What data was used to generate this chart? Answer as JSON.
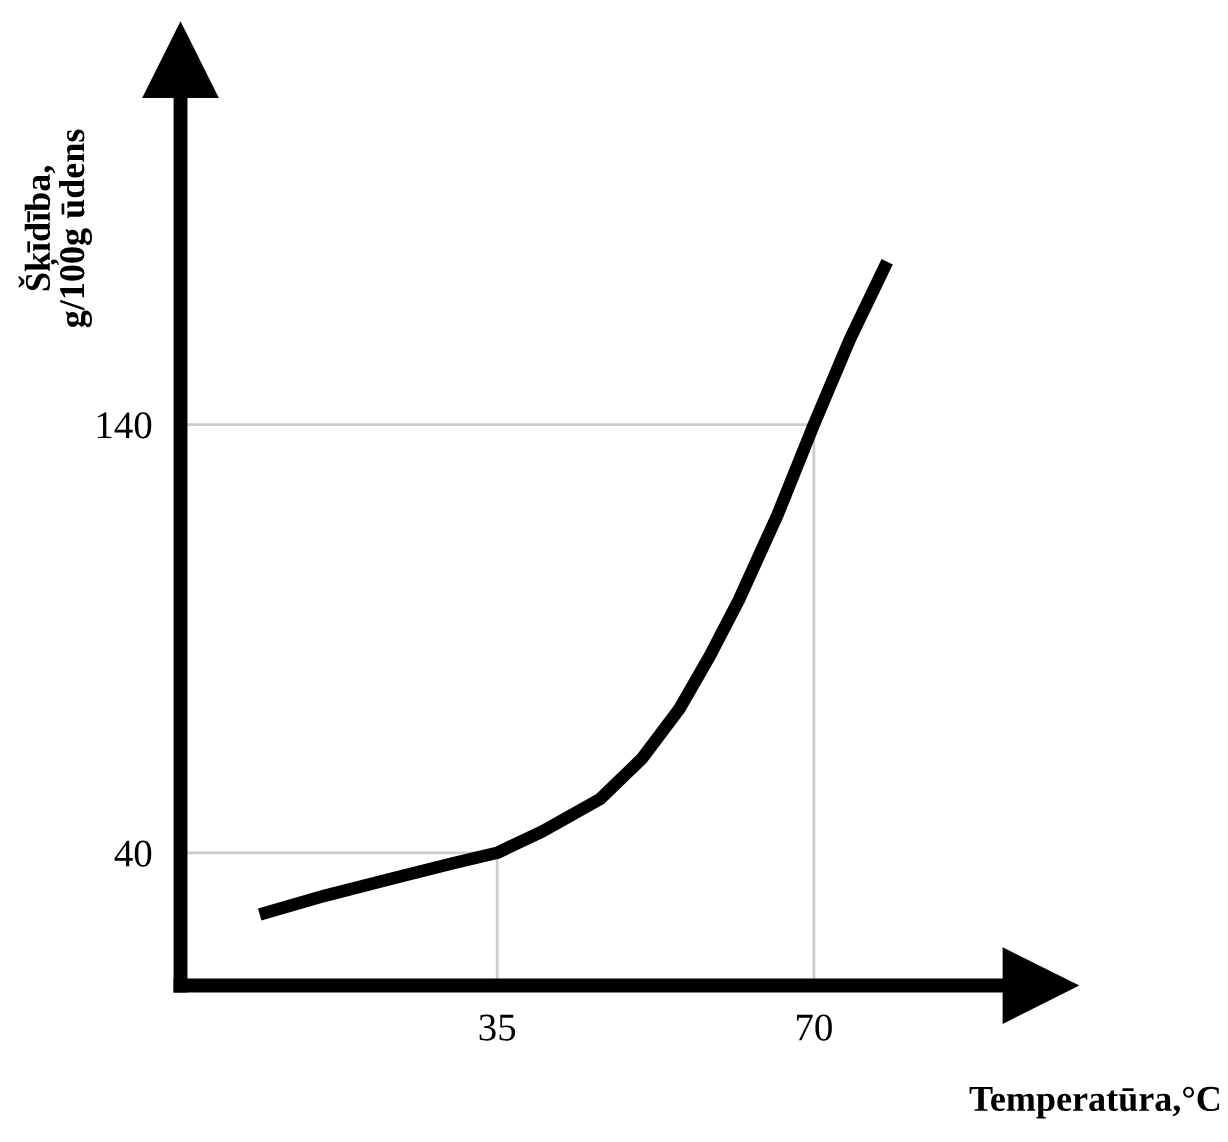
{
  "chart_data": {
    "type": "line",
    "xlabel": "Temperatūra,°C",
    "ylabel": "Šķīdība,\ng/100g ūdens",
    "x": [
      8.75,
      16,
      23.4,
      30,
      35,
      40,
      46.4,
      51,
      55.1,
      58.5,
      61.7,
      66,
      70,
      74,
      78.1
    ],
    "series": [
      {
        "color": "#000000",
        "values": [
          25.6,
          30,
          34,
          37.5,
          40,
          45,
          52.6,
          62,
          73.5,
          86,
          99,
          119,
          140,
          160,
          178
        ]
      }
    ],
    "xlim": [
      0,
      95
    ],
    "ylim": [
      9,
      225
    ],
    "xticks": [
      35,
      70
    ],
    "yticks": [
      40,
      140
    ],
    "grid": false,
    "marker": "none",
    "line_style": "solid",
    "ref_lines": [
      {
        "axis": "x",
        "value": 35,
        "color": "#cccccc"
      },
      {
        "axis": "x",
        "value": 70,
        "color": "#cccccc"
      },
      {
        "axis": "y",
        "value": 40,
        "color": "#cccccc"
      },
      {
        "axis": "y",
        "value": 140,
        "color": "#cccccc"
      }
    ]
  }
}
